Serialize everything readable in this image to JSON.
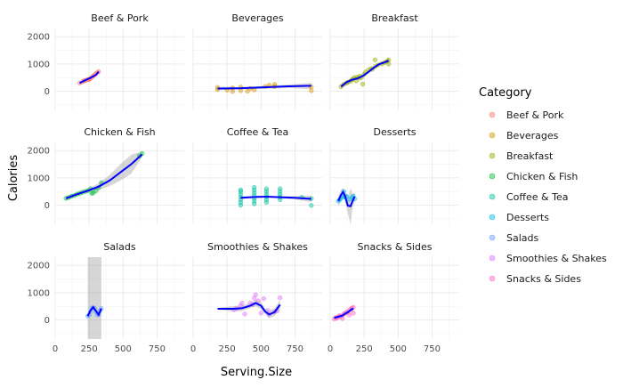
{
  "chart_data": {
    "type": "scatter",
    "xlabel": "Serving.Size",
    "ylabel": "Calories",
    "xlim": [
      0,
      950
    ],
    "ylim": [
      -700,
      2300
    ],
    "x_ticks": [
      0,
      250,
      500,
      750
    ],
    "y_ticks": [
      0,
      1000,
      2000
    ],
    "grid": true,
    "trend": "loess smoother with confidence band",
    "legend": {
      "title": "Category",
      "position": "right"
    },
    "series": [
      {
        "name": "Beef & Pork",
        "color": "#F8766D",
        "points": [
          [
            180,
            300
          ],
          [
            200,
            340
          ],
          [
            210,
            380
          ],
          [
            220,
            390
          ],
          [
            240,
            420
          ],
          [
            250,
            450
          ],
          [
            260,
            470
          ],
          [
            270,
            510
          ],
          [
            280,
            560
          ],
          [
            290,
            600
          ],
          [
            300,
            640
          ],
          [
            310,
            680
          ],
          [
            320,
            720
          ],
          [
            250,
            430
          ],
          [
            230,
            410
          ]
        ],
        "trend": [
          [
            180,
            300
          ],
          [
            220,
            400
          ],
          [
            260,
            490
          ],
          [
            300,
            600
          ],
          [
            320,
            720
          ]
        ],
        "band": []
      },
      {
        "name": "Beverages",
        "color": "#D39200",
        "points": [
          [
            180,
            140
          ],
          [
            180,
            60
          ],
          [
            250,
            40
          ],
          [
            290,
            -10
          ],
          [
            290,
            120
          ],
          [
            350,
            20
          ],
          [
            350,
            150
          ],
          [
            400,
            0
          ],
          [
            420,
            100
          ],
          [
            450,
            50
          ],
          [
            530,
            170
          ],
          [
            560,
            220
          ],
          [
            600,
            250
          ],
          [
            600,
            170
          ],
          [
            870,
            160
          ],
          [
            870,
            20
          ]
        ],
        "trend": [
          [
            180,
            100
          ],
          [
            350,
            110
          ],
          [
            500,
            140
          ],
          [
            700,
            180
          ],
          [
            870,
            200
          ]
        ],
        "band": [
          [
            180,
            40,
            170
          ],
          [
            350,
            60,
            150
          ],
          [
            500,
            90,
            190
          ],
          [
            700,
            120,
            240
          ],
          [
            870,
            80,
            310
          ]
        ]
      },
      {
        "name": "Breakfast",
        "color": "#93AA00",
        "points": [
          [
            80,
            170
          ],
          [
            100,
            250
          ],
          [
            120,
            300
          ],
          [
            130,
            330
          ],
          [
            150,
            370
          ],
          [
            160,
            420
          ],
          [
            170,
            460
          ],
          [
            180,
            500
          ],
          [
            190,
            380
          ],
          [
            200,
            520
          ],
          [
            210,
            470
          ],
          [
            220,
            550
          ],
          [
            230,
            500
          ],
          [
            240,
            260
          ],
          [
            250,
            620
          ],
          [
            260,
            700
          ],
          [
            280,
            770
          ],
          [
            300,
            830
          ],
          [
            310,
            800
          ],
          [
            330,
            900
          ],
          [
            350,
            960
          ],
          [
            380,
            1000
          ],
          [
            400,
            1050
          ],
          [
            420,
            1100
          ],
          [
            430,
            1150
          ],
          [
            430,
            1000
          ],
          [
            330,
            1150
          ]
        ],
        "trend": [
          [
            80,
            170
          ],
          [
            120,
            330
          ],
          [
            160,
            420
          ],
          [
            200,
            470
          ],
          [
            240,
            560
          ],
          [
            280,
            700
          ],
          [
            320,
            860
          ],
          [
            360,
            990
          ],
          [
            400,
            1060
          ],
          [
            430,
            1120
          ]
        ],
        "band": [
          [
            80,
            90,
            250
          ],
          [
            120,
            260,
            390
          ],
          [
            160,
            360,
            480
          ],
          [
            200,
            420,
            520
          ],
          [
            240,
            510,
            610
          ],
          [
            280,
            650,
            750
          ],
          [
            320,
            810,
            910
          ],
          [
            360,
            940,
            1040
          ],
          [
            400,
            1000,
            1120
          ],
          [
            430,
            1030,
            1210
          ]
        ]
      },
      {
        "name": "Chicken & Fish",
        "color": "#00BA38",
        "points": [
          [
            80,
            250
          ],
          [
            100,
            280
          ],
          [
            120,
            330
          ],
          [
            140,
            350
          ],
          [
            160,
            400
          ],
          [
            180,
            430
          ],
          [
            200,
            470
          ],
          [
            220,
            500
          ],
          [
            240,
            530
          ],
          [
            260,
            600
          ],
          [
            270,
            430
          ],
          [
            280,
            450
          ],
          [
            300,
            520
          ],
          [
            320,
            640
          ],
          [
            340,
            820
          ],
          [
            620,
            1800
          ],
          [
            640,
            1890
          ]
        ],
        "trend": [
          [
            80,
            250
          ],
          [
            160,
            400
          ],
          [
            240,
            530
          ],
          [
            320,
            680
          ],
          [
            400,
            900
          ],
          [
            480,
            1200
          ],
          [
            560,
            1500
          ],
          [
            640,
            1860
          ]
        ],
        "band": [
          [
            80,
            190,
            310
          ],
          [
            160,
            360,
            440
          ],
          [
            240,
            470,
            590
          ],
          [
            320,
            560,
            800
          ],
          [
            400,
            700,
            1100
          ],
          [
            480,
            900,
            1500
          ],
          [
            560,
            1150,
            1850
          ],
          [
            640,
            1760,
            1960
          ]
        ]
      },
      {
        "name": "Coffee & Tea",
        "color": "#00C19F",
        "points": [
          [
            350,
            0
          ],
          [
            350,
            100
          ],
          [
            350,
            200
          ],
          [
            350,
            300
          ],
          [
            350,
            400
          ],
          [
            350,
            500
          ],
          [
            350,
            560
          ],
          [
            450,
            50
          ],
          [
            450,
            150
          ],
          [
            450,
            250
          ],
          [
            450,
            350
          ],
          [
            450,
            450
          ],
          [
            450,
            550
          ],
          [
            450,
            650
          ],
          [
            540,
            100
          ],
          [
            540,
            200
          ],
          [
            540,
            300
          ],
          [
            540,
            400
          ],
          [
            540,
            500
          ],
          [
            540,
            600
          ],
          [
            640,
            200
          ],
          [
            640,
            300
          ],
          [
            640,
            400
          ],
          [
            640,
            500
          ],
          [
            640,
            600
          ],
          [
            870,
            240
          ],
          [
            870,
            -10
          ],
          [
            800,
            290
          ]
        ],
        "trend": [
          [
            350,
            270
          ],
          [
            450,
            300
          ],
          [
            540,
            310
          ],
          [
            640,
            290
          ],
          [
            750,
            270
          ],
          [
            870,
            230
          ]
        ],
        "band": [
          [
            350,
            220,
            320
          ],
          [
            450,
            270,
            330
          ],
          [
            540,
            280,
            340
          ],
          [
            640,
            250,
            330
          ],
          [
            750,
            210,
            330
          ],
          [
            870,
            110,
            350
          ]
        ]
      },
      {
        "name": "Desserts",
        "color": "#00B9E3",
        "points": [
          [
            60,
            150
          ],
          [
            70,
            200
          ],
          [
            80,
            250
          ],
          [
            100,
            300
          ],
          [
            110,
            320
          ],
          [
            120,
            330
          ],
          [
            140,
            210
          ],
          [
            160,
            280
          ],
          [
            170,
            330
          ],
          [
            180,
            230
          ],
          [
            100,
            500
          ]
        ],
        "trend": [
          [
            60,
            150
          ],
          [
            80,
            380
          ],
          [
            95,
            480
          ],
          [
            110,
            320
          ],
          [
            130,
            -20
          ],
          [
            150,
            -40
          ],
          [
            165,
            150
          ],
          [
            180,
            320
          ]
        ],
        "band": [
          [
            60,
            -50,
            350
          ],
          [
            80,
            200,
            560
          ],
          [
            95,
            330,
            630
          ],
          [
            110,
            150,
            490
          ],
          [
            130,
            -300,
            260
          ],
          [
            150,
            -700,
            620
          ],
          [
            165,
            -100,
            400
          ],
          [
            180,
            180,
            460
          ]
        ]
      },
      {
        "name": "Salads",
        "color": "#619CFF",
        "points": [
          [
            240,
            140
          ],
          [
            250,
            180
          ],
          [
            260,
            300
          ],
          [
            270,
            430
          ],
          [
            280,
            450
          ],
          [
            290,
            420
          ],
          [
            300,
            300
          ],
          [
            310,
            200
          ],
          [
            320,
            190
          ],
          [
            330,
            330
          ],
          [
            340,
            420
          ]
        ],
        "trend": [
          [
            240,
            140
          ],
          [
            260,
            350
          ],
          [
            280,
            470
          ],
          [
            300,
            330
          ],
          [
            320,
            190
          ],
          [
            340,
            420
          ]
        ],
        "band": [
          [
            240,
            -700,
            2300
          ],
          [
            260,
            -700,
            2300
          ],
          [
            280,
            -700,
            2300
          ],
          [
            300,
            -700,
            2300
          ],
          [
            320,
            -700,
            2300
          ],
          [
            340,
            -700,
            2300
          ]
        ]
      },
      {
        "name": "Smoothies & Shakes",
        "color": "#DB72FB",
        "points": [
          [
            300,
            370
          ],
          [
            320,
            420
          ],
          [
            350,
            530
          ],
          [
            360,
            620
          ],
          [
            380,
            220
          ],
          [
            420,
            620
          ],
          [
            440,
            560
          ],
          [
            450,
            800
          ],
          [
            460,
            920
          ],
          [
            480,
            700
          ],
          [
            500,
            250
          ],
          [
            520,
            780
          ],
          [
            550,
            350
          ],
          [
            560,
            200
          ],
          [
            600,
            300
          ],
          [
            620,
            330
          ],
          [
            640,
            810
          ]
        ],
        "trend": [
          [
            180,
            410
          ],
          [
            300,
            410
          ],
          [
            360,
            430
          ],
          [
            420,
            520
          ],
          [
            460,
            620
          ],
          [
            500,
            520
          ],
          [
            530,
            310
          ],
          [
            560,
            200
          ],
          [
            600,
            290
          ],
          [
            640,
            560
          ]
        ],
        "band": [
          [
            180,
            380,
            440
          ],
          [
            300,
            310,
            510
          ],
          [
            360,
            330,
            530
          ],
          [
            420,
            420,
            620
          ],
          [
            460,
            500,
            740
          ],
          [
            500,
            400,
            640
          ],
          [
            530,
            200,
            420
          ],
          [
            560,
            60,
            340
          ],
          [
            600,
            150,
            430
          ],
          [
            640,
            400,
            720
          ]
        ]
      },
      {
        "name": "Snacks & Sides",
        "color": "#FF61C3",
        "points": [
          [
            30,
            40
          ],
          [
            40,
            80
          ],
          [
            50,
            60
          ],
          [
            60,
            120
          ],
          [
            70,
            160
          ],
          [
            80,
            130
          ],
          [
            90,
            50
          ],
          [
            100,
            210
          ],
          [
            110,
            250
          ],
          [
            120,
            270
          ],
          [
            130,
            320
          ],
          [
            140,
            180
          ],
          [
            150,
            400
          ],
          [
            160,
            430
          ],
          [
            170,
            250
          ],
          [
            170,
            460
          ]
        ],
        "trend": [
          [
            30,
            80
          ],
          [
            60,
            120
          ],
          [
            90,
            160
          ],
          [
            110,
            230
          ],
          [
            130,
            280
          ],
          [
            150,
            360
          ],
          [
            170,
            420
          ]
        ],
        "band": [
          [
            30,
            0,
            160
          ],
          [
            60,
            60,
            180
          ],
          [
            90,
            80,
            240
          ],
          [
            110,
            160,
            300
          ],
          [
            130,
            200,
            360
          ],
          [
            150,
            260,
            460
          ],
          [
            170,
            300,
            540
          ]
        ]
      }
    ],
    "panels": [
      {
        "title": "Beef & Pork",
        "series": 0
      },
      {
        "title": "Beverages",
        "series": 1
      },
      {
        "title": "Breakfast",
        "series": 2
      },
      {
        "title": "Chicken & Fish",
        "series": 3
      },
      {
        "title": "Coffee & Tea",
        "series": 4
      },
      {
        "title": "Desserts",
        "series": 5
      },
      {
        "title": "Salads",
        "series": 6
      },
      {
        "title": "Smoothies & Shakes",
        "series": 7
      },
      {
        "title": "Snacks & Sides",
        "series": 8
      }
    ]
  }
}
